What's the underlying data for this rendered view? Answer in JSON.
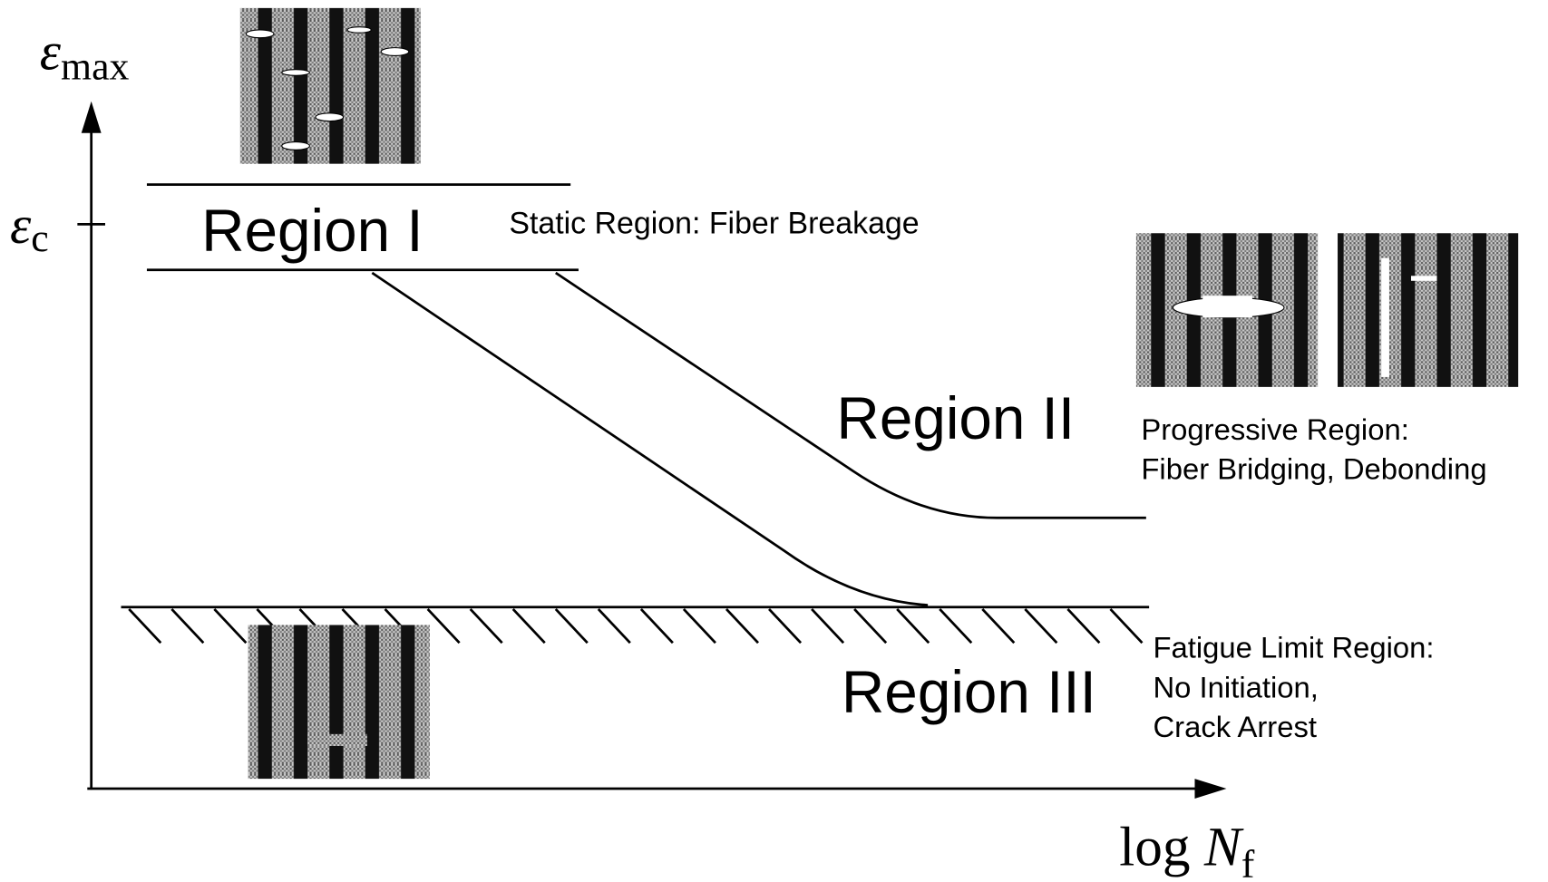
{
  "axes": {
    "y_label": {
      "symbol": "ε",
      "subscript": "max"
    },
    "y_tick": {
      "symbol": "ε",
      "subscript": "c"
    },
    "x_label": {
      "prefix": "log",
      "symbol": "N",
      "subscript": "f"
    }
  },
  "regions": [
    {
      "name": "Region I",
      "description": [
        "Static Region: Fiber Breakage"
      ]
    },
    {
      "name": "Region II",
      "description": [
        "Progressive Region:",
        "Fiber Bridging, Debonding"
      ]
    },
    {
      "name": "Region III",
      "description": [
        "Fatigue Limit Region:",
        "No Initiation,",
        "Crack Arrest"
      ]
    }
  ]
}
